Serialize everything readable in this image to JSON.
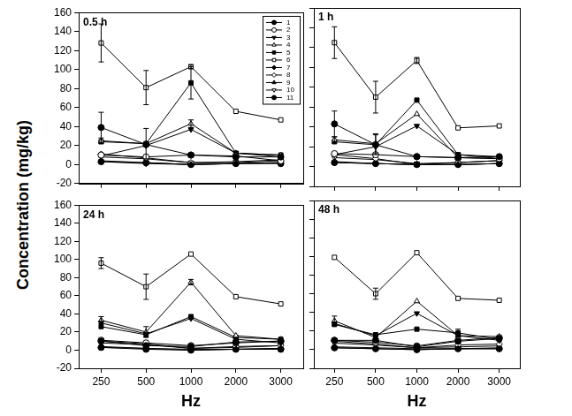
{
  "ylabel": "Concentration (mg/kg)",
  "chart_data": [
    {
      "type": "line",
      "title": "0.5 h",
      "categories": [
        "250",
        "500",
        "1000",
        "2000",
        "3000"
      ],
      "ylim": [
        -20,
        160
      ],
      "yticks": [
        -20,
        0,
        20,
        40,
        60,
        80,
        100,
        120,
        140,
        160
      ],
      "grid": false,
      "tick_labels": "y",
      "legend": "upper right",
      "series": [
        {
          "name": "1",
          "color": "#000000",
          "marker": "circle",
          "values": [
            39,
            21,
            10,
            8,
            8
          ],
          "errors": [
            16,
            null,
            null,
            null,
            null
          ]
        },
        {
          "name": "2",
          "color": "#000000",
          "marker": "circle-open",
          "values": [
            10,
            8,
            10,
            9,
            4
          ],
          "errors": [
            null,
            null,
            null,
            null,
            null
          ]
        },
        {
          "name": "3",
          "color": "#000000",
          "marker": "triangle-down",
          "values": [
            9,
            20,
            37,
            12,
            8
          ],
          "errors": [
            null,
            null,
            null,
            null,
            null
          ]
        },
        {
          "name": "4",
          "color": "#000000",
          "marker": "triangle-up-open",
          "values": [
            25,
            22,
            43,
            12,
            10
          ],
          "errors": [
            3,
            16,
            4,
            null,
            null
          ]
        },
        {
          "name": "5",
          "color": "#000000",
          "marker": "square",
          "values": [
            24,
            22,
            86,
            12,
            10
          ],
          "errors": [
            null,
            null,
            17,
            null,
            null
          ]
        },
        {
          "name": "6",
          "color": "#000000",
          "marker": "square-open",
          "values": [
            128,
            81,
            103,
            56,
            47
          ],
          "errors": [
            20,
            18,
            2,
            null,
            null
          ]
        },
        {
          "name": "7",
          "color": "#000000",
          "marker": "diamond",
          "values": [
            3,
            1,
            0,
            1,
            2
          ],
          "errors": [
            null,
            null,
            null,
            null,
            null
          ]
        },
        {
          "name": "8",
          "color": "#000000",
          "marker": "diamond-open",
          "values": [
            11,
            7,
            2,
            2,
            4
          ],
          "errors": [
            null,
            null,
            null,
            null,
            null
          ]
        },
        {
          "name": "9",
          "color": "#000000",
          "marker": "triangle-up",
          "values": [
            4,
            2,
            0,
            1,
            2
          ],
          "errors": [
            null,
            null,
            null,
            null,
            null
          ]
        },
        {
          "name": "10",
          "color": "#000000",
          "marker": "triangle-down-open",
          "values": [
            8,
            6,
            2,
            3,
            5
          ],
          "errors": [
            null,
            null,
            null,
            null,
            null
          ]
        },
        {
          "name": "11",
          "color": "#000000",
          "marker": "circle",
          "values": [
            3,
            2,
            0,
            1,
            1
          ],
          "errors": [
            null,
            null,
            null,
            null,
            null
          ]
        }
      ]
    },
    {
      "type": "line",
      "title": "1 h",
      "categories": [
        "250",
        "500",
        "1000",
        "2000",
        "3000"
      ],
      "ylim": [
        -20,
        160
      ],
      "yticks": [
        -20,
        0,
        20,
        40,
        60,
        80,
        100,
        120,
        140,
        160
      ],
      "grid": false,
      "tick_labels": false,
      "series": [
        {
          "name": "1",
          "color": "#000000",
          "marker": "circle",
          "values": [
            43,
            22,
            10,
            9,
            10
          ],
          "errors": [
            13,
            10,
            null,
            null,
            null
          ]
        },
        {
          "name": "2",
          "color": "#000000",
          "marker": "circle-open",
          "values": [
            13,
            12,
            10,
            9,
            8
          ],
          "errors": [
            null,
            null,
            null,
            null,
            null
          ]
        },
        {
          "name": "3",
          "color": "#000000",
          "marker": "triangle-down",
          "values": [
            12,
            20,
            41,
            12,
            8
          ],
          "errors": [
            null,
            null,
            null,
            null,
            null
          ]
        },
        {
          "name": "4",
          "color": "#000000",
          "marker": "triangle-up-open",
          "values": [
            27,
            23,
            53,
            9,
            8
          ],
          "errors": [
            3,
            10,
            null,
            null,
            null
          ]
        },
        {
          "name": "5",
          "color": "#000000",
          "marker": "square",
          "values": [
            25,
            22,
            67,
            12,
            10
          ],
          "errors": [
            null,
            null,
            null,
            null,
            null
          ]
        },
        {
          "name": "6",
          "color": "#000000",
          "marker": "square-open",
          "values": [
            125,
            70,
            107,
            39,
            41
          ],
          "errors": [
            16,
            16,
            3,
            null,
            null
          ]
        },
        {
          "name": "7",
          "color": "#000000",
          "marker": "diamond",
          "values": [
            4,
            3,
            2,
            2,
            3
          ],
          "errors": [
            null,
            null,
            null,
            null,
            null
          ]
        },
        {
          "name": "8",
          "color": "#000000",
          "marker": "diamond-open",
          "values": [
            12,
            8,
            2,
            4,
            6
          ],
          "errors": [
            null,
            null,
            null,
            null,
            null
          ]
        },
        {
          "name": "9",
          "color": "#000000",
          "marker": "triangle-up",
          "values": [
            5,
            3,
            2,
            2,
            3
          ],
          "errors": [
            null,
            null,
            null,
            null,
            null
          ]
        },
        {
          "name": "10",
          "color": "#000000",
          "marker": "triangle-down-open",
          "values": [
            9,
            7,
            3,
            4,
            6
          ],
          "errors": [
            null,
            null,
            null,
            null,
            null
          ]
        },
        {
          "name": "11",
          "color": "#000000",
          "marker": "circle",
          "values": [
            4,
            3,
            2,
            2,
            3
          ],
          "errors": [
            null,
            null,
            null,
            null,
            null
          ]
        }
      ]
    },
    {
      "type": "line",
      "title": "24 h",
      "categories": [
        "250",
        "500",
        "1000",
        "2000",
        "3000"
      ],
      "ylim": [
        -20,
        160
      ],
      "yticks": [
        -20,
        0,
        20,
        40,
        60,
        80,
        100,
        120,
        140,
        160
      ],
      "grid": false,
      "xlabel": "Hz",
      "series": [
        {
          "name": "1",
          "color": "#000000",
          "marker": "circle",
          "values": [
            10,
            5,
            4,
            9,
            10
          ],
          "errors": [
            null,
            null,
            null,
            null,
            null
          ]
        },
        {
          "name": "2",
          "color": "#000000",
          "marker": "circle-open",
          "values": [
            11,
            8,
            5,
            8,
            10
          ],
          "errors": [
            null,
            null,
            null,
            null,
            null
          ]
        },
        {
          "name": "3",
          "color": "#000000",
          "marker": "triangle-down",
          "values": [
            30,
            18,
            35,
            12,
            8
          ],
          "errors": [
            null,
            null,
            null,
            null,
            null
          ]
        },
        {
          "name": "4",
          "color": "#000000",
          "marker": "triangle-up-open",
          "values": [
            33,
            20,
            75,
            16,
            12
          ],
          "errors": [
            4,
            6,
            3,
            null,
            null
          ]
        },
        {
          "name": "5",
          "color": "#000000",
          "marker": "square",
          "values": [
            26,
            17,
            37,
            14,
            12
          ],
          "errors": [
            null,
            null,
            null,
            null,
            null
          ]
        },
        {
          "name": "6",
          "color": "#000000",
          "marker": "square-open",
          "values": [
            96,
            70,
            106,
            59,
            51
          ],
          "errors": [
            6,
            14,
            null,
            null,
            null
          ]
        },
        {
          "name": "7",
          "color": "#000000",
          "marker": "diamond",
          "values": [
            3,
            2,
            0,
            1,
            2
          ],
          "errors": [
            null,
            null,
            null,
            null,
            null
          ]
        },
        {
          "name": "8",
          "color": "#000000",
          "marker": "diamond-open",
          "values": [
            10,
            7,
            2,
            4,
            5
          ],
          "errors": [
            null,
            null,
            null,
            null,
            null
          ]
        },
        {
          "name": "9",
          "color": "#000000",
          "marker": "triangle-up",
          "values": [
            4,
            2,
            1,
            1,
            2
          ],
          "errors": [
            null,
            null,
            null,
            null,
            null
          ]
        },
        {
          "name": "10",
          "color": "#000000",
          "marker": "triangle-down-open",
          "values": [
            8,
            6,
            2,
            3,
            5
          ],
          "errors": [
            null,
            null,
            null,
            null,
            null
          ]
        },
        {
          "name": "11",
          "color": "#000000",
          "marker": "circle",
          "values": [
            3,
            1,
            0,
            1,
            1
          ],
          "errors": [
            null,
            null,
            null,
            null,
            null
          ]
        }
      ]
    },
    {
      "type": "line",
      "title": "48 h",
      "categories": [
        "250",
        "500",
        "1000",
        "2000",
        "3000"
      ],
      "ylim": [
        -20,
        160
      ],
      "yticks": [
        -20,
        0,
        20,
        40,
        60,
        80,
        100,
        120,
        140,
        160
      ],
      "grid": false,
      "tick_labels": "x",
      "xlabel": "Hz",
      "series": [
        {
          "name": "1",
          "color": "#000000",
          "marker": "circle",
          "values": [
            10,
            10,
            3,
            9,
            12
          ],
          "errors": [
            null,
            null,
            null,
            null,
            null
          ]
        },
        {
          "name": "2",
          "color": "#000000",
          "marker": "circle-open",
          "values": [
            10,
            8,
            4,
            10,
            13
          ],
          "errors": [
            null,
            null,
            null,
            null,
            null
          ]
        },
        {
          "name": "3",
          "color": "#000000",
          "marker": "triangle-down",
          "values": [
            28,
            15,
            39,
            15,
            10
          ],
          "errors": [
            null,
            null,
            null,
            null,
            null
          ]
        },
        {
          "name": "4",
          "color": "#000000",
          "marker": "triangle-up-open",
          "values": [
            31,
            13,
            52,
            15,
            14
          ],
          "errors": [
            5,
            null,
            null,
            null,
            null
          ]
        },
        {
          "name": "5",
          "color": "#000000",
          "marker": "square",
          "values": [
            27,
            16,
            22,
            18,
            11
          ],
          "errors": [
            null,
            null,
            null,
            4,
            null
          ]
        },
        {
          "name": "6",
          "color": "#000000",
          "marker": "square-open",
          "values": [
            99,
            60,
            104,
            55,
            53
          ],
          "errors": [
            null,
            6,
            null,
            null,
            null
          ]
        },
        {
          "name": "7",
          "color": "#000000",
          "marker": "diamond",
          "values": [
            2,
            1,
            0,
            1,
            1
          ],
          "errors": [
            null,
            null,
            null,
            null,
            null
          ]
        },
        {
          "name": "8",
          "color": "#000000",
          "marker": "diamond-open",
          "values": [
            9,
            6,
            2,
            5,
            6
          ],
          "errors": [
            null,
            null,
            null,
            null,
            null
          ]
        },
        {
          "name": "9",
          "color": "#000000",
          "marker": "triangle-up",
          "values": [
            3,
            2,
            1,
            1,
            2
          ],
          "errors": [
            null,
            null,
            null,
            null,
            null
          ]
        },
        {
          "name": "10",
          "color": "#000000",
          "marker": "triangle-down-open",
          "values": [
            7,
            5,
            2,
            3,
            4
          ],
          "errors": [
            null,
            null,
            null,
            null,
            null
          ]
        },
        {
          "name": "11",
          "color": "#000000",
          "marker": "circle",
          "values": [
            2,
            1,
            0,
            1,
            1
          ],
          "errors": [
            null,
            null,
            null,
            null,
            null
          ]
        }
      ]
    }
  ]
}
